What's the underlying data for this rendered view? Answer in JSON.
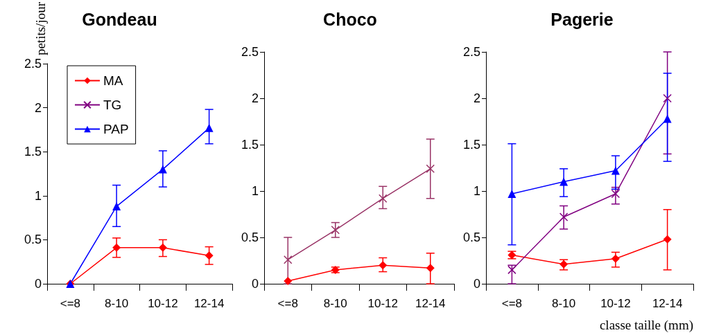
{
  "chart_data": [
    {
      "type": "line",
      "title": "Gondeau",
      "ylabel": "petits/jour",
      "categories": [
        "<=8",
        "8-10",
        "10-12",
        "12-14"
      ],
      "ylim": [
        0,
        2.5
      ],
      "yticks": [
        0,
        0.5,
        1,
        1.5,
        2,
        2.5
      ],
      "grid": false,
      "legend": "top left",
      "series": [
        {
          "name": "MA",
          "color": "#ff0000",
          "marker": "diamond",
          "values": [
            0,
            0.41,
            0.41,
            0.32
          ],
          "errors": [
            null,
            [
              0.3,
              0.52
            ],
            [
              0.31,
              0.5
            ],
            [
              0.22,
              0.42
            ]
          ]
        },
        {
          "name": "TG",
          "color": "#800080",
          "marker": "cross",
          "values": [
            null,
            null,
            null,
            null
          ]
        },
        {
          "name": "PAP",
          "color": "#0000ff",
          "marker": "triangle",
          "values": [
            0,
            0.88,
            1.3,
            1.77
          ],
          "errors": [
            null,
            [
              0.65,
              1.12
            ],
            [
              1.1,
              1.51
            ],
            [
              1.59,
              1.98
            ]
          ]
        }
      ]
    },
    {
      "type": "line",
      "title": "Choco",
      "categories": [
        "<=8",
        "8-10",
        "10-12",
        "12-14"
      ],
      "ylim": [
        0,
        2.5
      ],
      "yticks": [
        0,
        0.5,
        1,
        1.5,
        2,
        2.5
      ],
      "grid": false,
      "legend": false,
      "series": [
        {
          "color": "#ff0000",
          "marker": "diamond",
          "values": [
            0.03,
            0.15,
            0.2,
            0.17
          ],
          "errors": [
            null,
            [
              0.12,
              0.18
            ],
            [
              0.13,
              0.28
            ],
            [
              0,
              0.33
            ]
          ]
        },
        {
          "color": "#993366",
          "marker": "cross",
          "values": [
            0.26,
            0.58,
            0.92,
            1.24
          ],
          "errors": [
            [
              0,
              0.5
            ],
            [
              0.5,
              0.66
            ],
            [
              0.81,
              1.05
            ],
            [
              0.92,
              1.56
            ]
          ]
        }
      ]
    },
    {
      "type": "line",
      "title": "Pagerie",
      "xlabel": "classe taille (mm)",
      "categories": [
        "<=8",
        "8-10",
        "10-12",
        "12-14"
      ],
      "ylim": [
        0,
        2.5
      ],
      "yticks": [
        0,
        0.5,
        1,
        1.5,
        2,
        2.5
      ],
      "grid": false,
      "legend": false,
      "series": [
        {
          "color": "#ff0000",
          "marker": "diamond",
          "values": [
            0.31,
            0.21,
            0.27,
            0.48
          ],
          "errors": [
            [
              0.27,
              0.35
            ],
            [
              0.15,
              0.26
            ],
            [
              0.18,
              0.34
            ],
            [
              0.15,
              0.8
            ]
          ]
        },
        {
          "color": "#800080",
          "marker": "cross",
          "values": [
            0.15,
            0.72,
            0.97,
            2.0
          ],
          "errors": [
            [
              0,
              0.2
            ],
            [
              0.59,
              0.84
            ],
            [
              0.86,
              1.04
            ],
            [
              1.4,
              2.5
            ]
          ]
        },
        {
          "color": "#0000ff",
          "marker": "triangle",
          "values": [
            0.97,
            1.1,
            1.22,
            1.78
          ],
          "errors": [
            [
              0.42,
              1.51
            ],
            [
              0.94,
              1.24
            ],
            [
              1.02,
              1.38
            ],
            [
              1.32,
              2.27
            ]
          ]
        }
      ]
    }
  ]
}
